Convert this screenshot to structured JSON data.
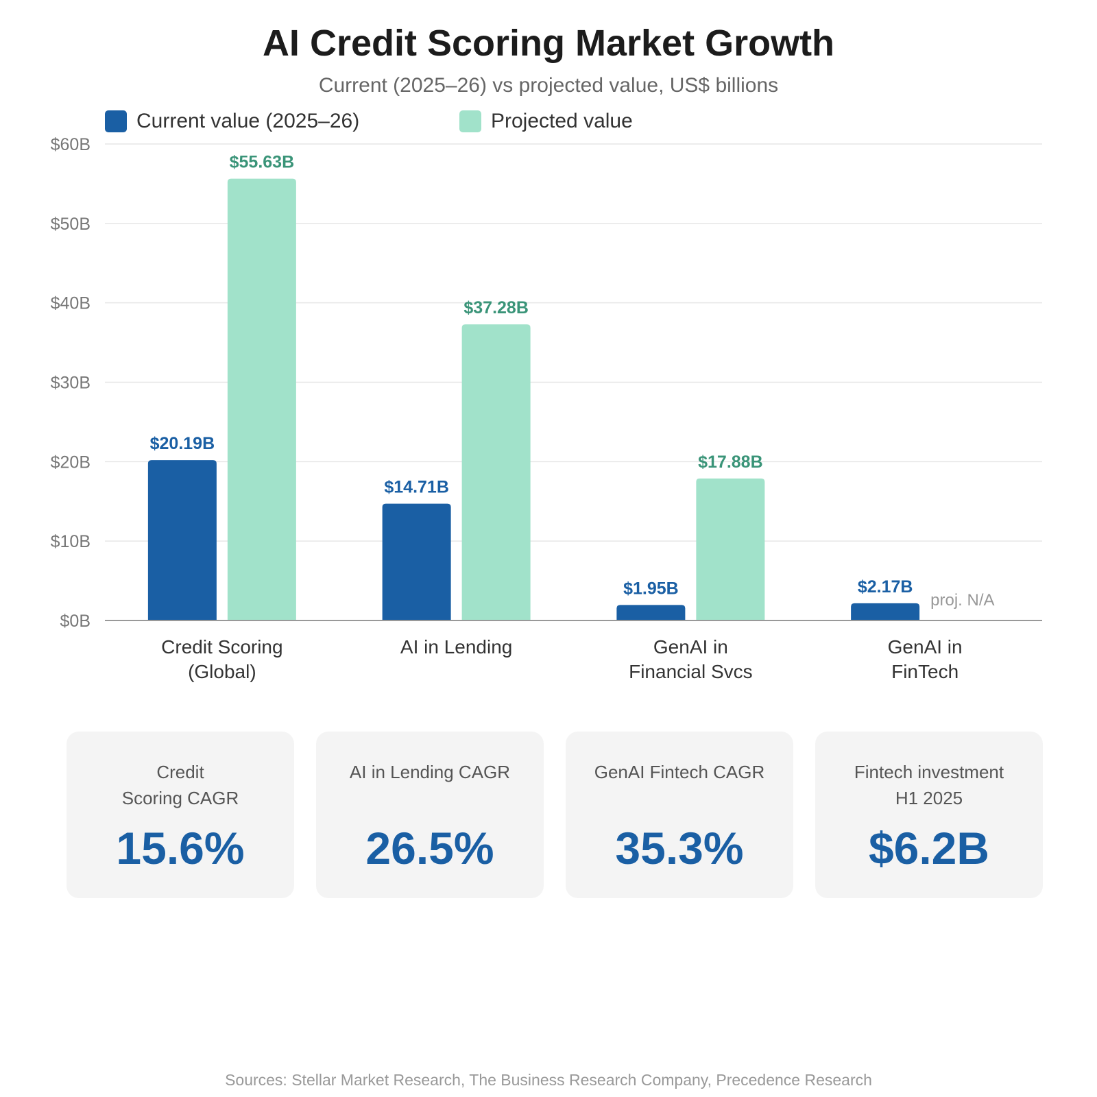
{
  "title": "AI Credit Scoring Market Growth",
  "subtitle": "Current (2025–26) vs projected value, US$ billions",
  "legend": [
    {
      "label": "Current value (2025–26)",
      "color": "#1a5fa4"
    },
    {
      "label": "Projected value",
      "color": "#a1e2ca"
    }
  ],
  "chart_data": {
    "type": "bar",
    "categories": [
      [
        "Credit Scoring",
        "(Global)"
      ],
      [
        "AI in Lending"
      ],
      [
        "GenAI in",
        "Financial Svcs"
      ],
      [
        "GenAI in",
        "FinTech"
      ]
    ],
    "series": [
      {
        "name": "Current value (2025–26)",
        "color": "#1a5fa4",
        "label_color": "#1a5fa4",
        "values": [
          20.19,
          14.71,
          1.95,
          2.17
        ],
        "labels": [
          "$20.19B",
          "$14.71B",
          "$1.95B",
          "$2.17B"
        ]
      },
      {
        "name": "Projected value",
        "color": "#a1e2ca",
        "label_color": "#3a9478",
        "values": [
          55.63,
          37.28,
          17.88,
          null
        ],
        "labels": [
          "$55.63B",
          "$37.28B",
          "$17.88B",
          "proj. N/A"
        ]
      }
    ],
    "ylim": [
      0,
      60
    ],
    "yticks": [
      0,
      10,
      20,
      30,
      40,
      50,
      60
    ],
    "ytick_labels": [
      "$0B",
      "$10B",
      "$20B",
      "$30B",
      "$40B",
      "$50B",
      "$60B"
    ],
    "missing_label_color": "#999999",
    "grid": true,
    "legend_position": "top-left"
  },
  "cards": [
    {
      "label": "Credit\nScoring CAGR",
      "value": "15.6%"
    },
    {
      "label": "AI in Lending CAGR",
      "value": "26.5%"
    },
    {
      "label": "GenAI Fintech CAGR",
      "value": "35.3%"
    },
    {
      "label": "Fintech investment\nH1 2025",
      "value": "$6.2B"
    }
  ],
  "sources": "Sources: Stellar Market Research, The Business Research Company, Precedence Research"
}
